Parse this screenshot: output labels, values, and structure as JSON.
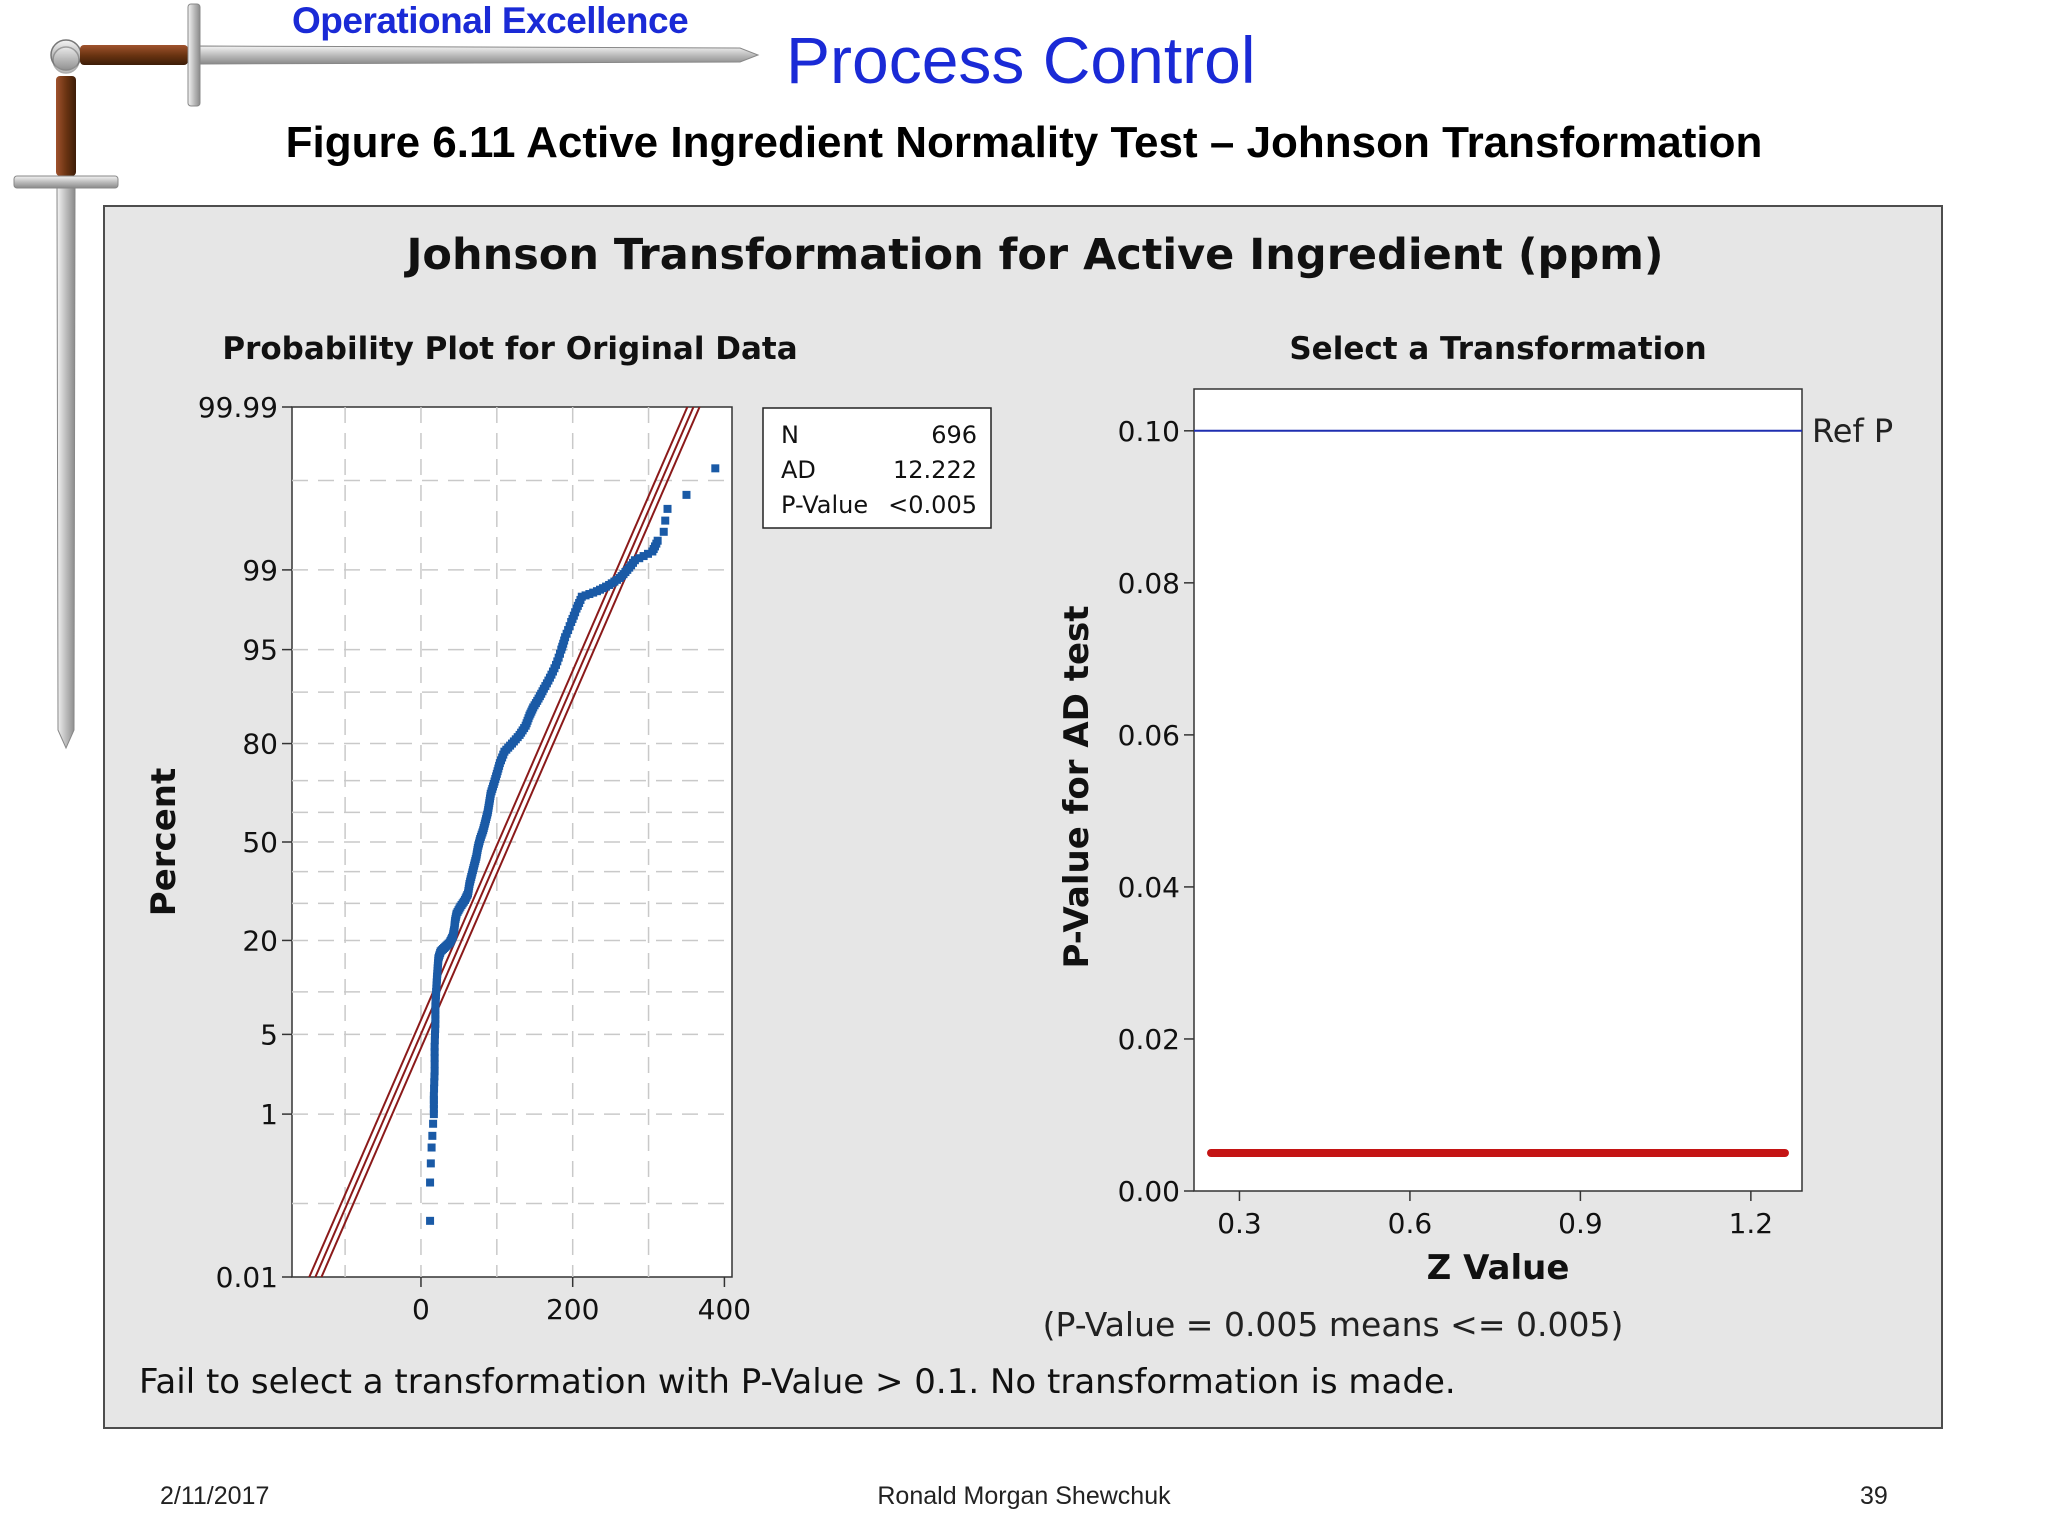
{
  "slide": {
    "brand": "Operational Excellence",
    "title": "Process Control",
    "caption": "Figure 6.11  Active Ingredient Normality Test – Johnson Transformation"
  },
  "chart_frame": {
    "title": "Johnson Transformation for Active Ingredient (ppm)",
    "footer_note": "Fail to select a transformation with P-Value > 0.1. No transformation is made."
  },
  "chart_data": [
    {
      "type": "scatter",
      "title": "Probability Plot for Original Data",
      "xlabel": "",
      "ylabel": "Percent",
      "xlim": [
        -170,
        410
      ],
      "x_ticks": [
        0,
        200,
        400
      ],
      "x_tick_labels": [
        "0",
        "200",
        "400"
      ],
      "y_scale": "normal-probability",
      "y_ticks": [
        0.01,
        1,
        5,
        20,
        50,
        80,
        95,
        99,
        99.99
      ],
      "y_tick_labels": [
        "0.01",
        "1",
        "5",
        "20",
        "50",
        "80",
        "95",
        "99",
        "99.99"
      ],
      "y_minor_gridlines": [
        0.1,
        10,
        30,
        40,
        60,
        70,
        90,
        99.9
      ],
      "grid": true,
      "stats_box": {
        "rows": [
          {
            "label": "N",
            "value": "696"
          },
          {
            "label": "AD",
            "value": "12.222"
          },
          {
            "label": "P-Value",
            "value": "<0.005"
          }
        ]
      },
      "fit_line": {
        "mean": 110,
        "sd": 67,
        "band_halfwidth_sd": 0.12
      },
      "series": [
        {
          "color": "#1a5aa6",
          "points": [
            [
              12,
              0.06
            ],
            [
              12,
              0.18
            ],
            [
              13,
              0.3
            ],
            [
              14,
              0.45
            ],
            [
              15,
              0.6
            ],
            [
              16,
              0.8
            ],
            [
              17,
              1.0
            ],
            [
              17,
              1.5
            ],
            [
              18,
              2.5
            ],
            [
              18,
              4
            ],
            [
              19,
              6
            ],
            [
              19,
              8
            ],
            [
              20,
              10
            ],
            [
              21,
              12
            ],
            [
              22,
              14
            ],
            [
              23,
              16
            ],
            [
              26,
              17.5
            ],
            [
              32,
              18.5
            ],
            [
              38,
              19.5
            ],
            [
              42,
              21
            ],
            [
              44,
              23
            ],
            [
              45,
              25
            ],
            [
              47,
              27
            ],
            [
              52,
              29
            ],
            [
              58,
              31
            ],
            [
              62,
              33
            ],
            [
              64,
              36
            ],
            [
              67,
              39
            ],
            [
              70,
              42
            ],
            [
              73,
              45
            ],
            [
              75,
              48
            ],
            [
              78,
              51
            ],
            [
              82,
              54
            ],
            [
              85,
              57
            ],
            [
              88,
              60
            ],
            [
              90,
              63
            ],
            [
              92,
              66
            ],
            [
              96,
              69
            ],
            [
              100,
              72
            ],
            [
              104,
              75
            ],
            [
              110,
              78
            ],
            [
              120,
              80
            ],
            [
              130,
              82
            ],
            [
              138,
              84
            ],
            [
              143,
              86
            ],
            [
              148,
              87.5
            ],
            [
              155,
              89
            ],
            [
              162,
              90.5
            ],
            [
              170,
              92
            ],
            [
              178,
              93.5
            ],
            [
              185,
              95
            ],
            [
              190,
              96
            ],
            [
              198,
              97
            ],
            [
              205,
              97.7
            ],
            [
              212,
              98.2
            ],
            [
              232,
              98.4
            ],
            [
              248,
              98.6
            ],
            [
              262,
              98.8
            ],
            [
              272,
              99.0
            ],
            [
              282,
              99.2
            ],
            [
              305,
              99.35
            ],
            [
              312,
              99.5
            ],
            [
              320,
              99.6
            ],
            [
              322,
              99.7
            ],
            [
              325,
              99.78
            ],
            [
              350,
              99.85
            ],
            [
              388,
              99.93
            ]
          ]
        }
      ]
    },
    {
      "type": "line",
      "title": "Select a Transformation",
      "xlabel": "Z Value",
      "ylabel": "P-Value for AD test",
      "xlim": [
        0.22,
        1.29
      ],
      "ylim": [
        0.0,
        0.1055
      ],
      "x_ticks": [
        0.3,
        0.6,
        0.9,
        1.2
      ],
      "x_tick_labels": [
        "0.3",
        "0.6",
        "0.9",
        "1.2"
      ],
      "y_ticks": [
        0.0,
        0.02,
        0.04,
        0.06,
        0.08,
        0.1
      ],
      "y_tick_labels": [
        "0.00",
        "0.02",
        "0.04",
        "0.06",
        "0.08",
        "0.10"
      ],
      "grid": false,
      "reference_line": {
        "label": "Ref P",
        "value": 0.1,
        "color": "#1f2fb0"
      },
      "note": "(P-Value = 0.005 means <= 0.005)",
      "series": [
        {
          "color": "#c41414",
          "x": [
            0.25,
            1.26
          ],
          "y": [
            0.005,
            0.005
          ]
        }
      ]
    }
  ],
  "footer": {
    "date": "2/11/2017",
    "author": "Ronald Morgan Shewchuk",
    "page": "39"
  },
  "colors": {
    "accent": "#1a2ad6",
    "frame_bg": "#e6e6e6",
    "points": "#1a5aa6",
    "fit": "#8b1a1a",
    "series": "#c41414",
    "ref_line": "#1f2fb0"
  }
}
